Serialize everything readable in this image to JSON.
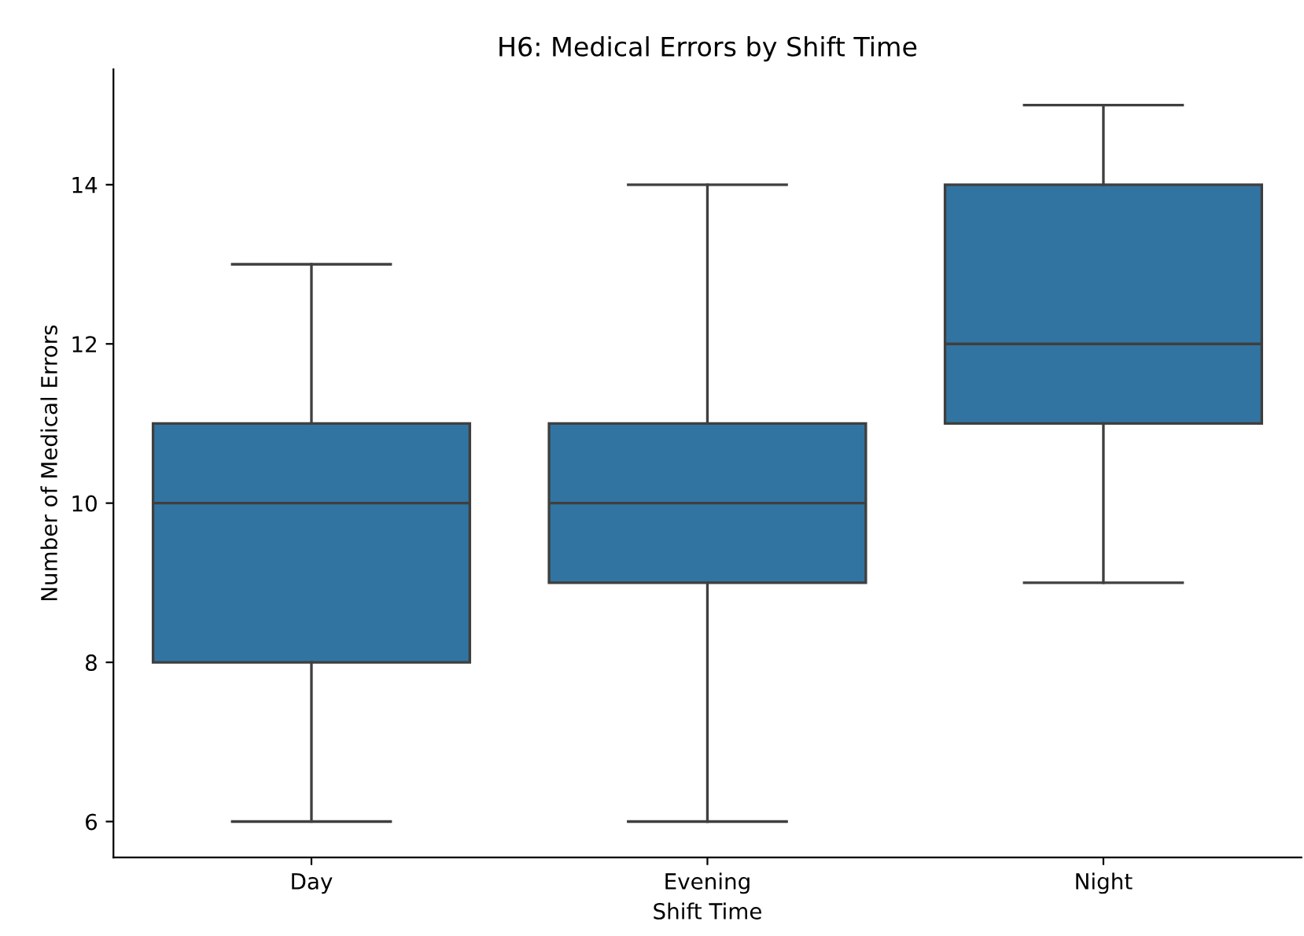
{
  "chart_data": {
    "type": "box",
    "title": "H6: Medical Errors by Shift Time",
    "xlabel": "Shift Time",
    "ylabel": "Number of Medical Errors",
    "categories": [
      "Day",
      "Evening",
      "Night"
    ],
    "boxes": [
      {
        "low": 6,
        "q1": 8,
        "median": 10,
        "q3": 11,
        "high": 13
      },
      {
        "low": 6,
        "q1": 9,
        "median": 10,
        "q3": 11,
        "high": 14
      },
      {
        "low": 9,
        "q1": 11,
        "median": 12,
        "q3": 14,
        "high": 15
      }
    ],
    "color": "#3274a1",
    "ylim": [
      5.55,
      15.45
    ],
    "yticks": [
      6,
      8,
      10,
      12,
      14
    ],
    "grid": false
  }
}
